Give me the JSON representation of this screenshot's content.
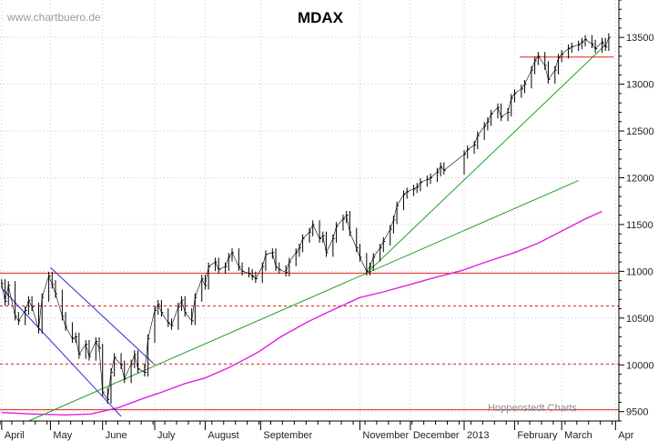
{
  "watermark": "www.chartbuero.de",
  "credit": "Hoppenstedt Charts",
  "chart_data": {
    "type": "line",
    "title": "MDAX",
    "xlabel": "",
    "ylabel": "",
    "ylim": [
      9400,
      13900
    ],
    "xlim": [
      "2012-04-01",
      "2013-04-04"
    ],
    "y_axis_position": "right",
    "grid": "dotted",
    "y_ticks": [
      9500,
      10000,
      10500,
      11000,
      11500,
      12000,
      12500,
      13000,
      13500
    ],
    "x_ticks": [
      {
        "label": "April",
        "date": "2012-04-02"
      },
      {
        "label": "May",
        "date": "2012-05-01"
      },
      {
        "label": "June",
        "date": "2012-06-01"
      },
      {
        "label": "July",
        "date": "2012-07-02"
      },
      {
        "label": "August",
        "date": "2012-08-01"
      },
      {
        "label": "September",
        "date": "2012-09-03"
      },
      {
        "label": "November",
        "date": "2012-11-01"
      },
      {
        "label": "December",
        "date": "2012-12-01"
      },
      {
        "label": "2013",
        "date": "2013-01-02"
      },
      {
        "label": "February",
        "date": "2013-02-01"
      },
      {
        "label": "March",
        "date": "2013-03-01"
      },
      {
        "label": "Apr",
        "date": "2013-04-02"
      }
    ],
    "price": [
      [
        "2012-04-02",
        10870
      ],
      [
        "2012-04-04",
        10680
      ],
      [
        "2012-04-06",
        10850
      ],
      [
        "2012-04-10",
        10520
      ],
      [
        "2012-04-12",
        10470
      ],
      [
        "2012-04-16",
        10580
      ],
      [
        "2012-04-18",
        10690
      ],
      [
        "2012-04-20",
        10620
      ],
      [
        "2012-04-24",
        10380
      ],
      [
        "2012-04-26",
        10720
      ],
      [
        "2012-04-30",
        10950
      ],
      [
        "2012-05-02",
        10860
      ],
      [
        "2012-05-04",
        10760
      ],
      [
        "2012-05-08",
        10520
      ],
      [
        "2012-05-10",
        10410
      ],
      [
        "2012-05-14",
        10280
      ],
      [
        "2012-05-16",
        10300
      ],
      [
        "2012-05-18",
        10110
      ],
      [
        "2012-05-22",
        10220
      ],
      [
        "2012-05-24",
        10090
      ],
      [
        "2012-05-28",
        10250
      ],
      [
        "2012-05-30",
        10180
      ],
      [
        "2012-06-01",
        9710
      ],
      [
        "2012-06-04",
        9630
      ],
      [
        "2012-06-06",
        9920
      ],
      [
        "2012-06-08",
        10080
      ],
      [
        "2012-06-12",
        10000
      ],
      [
        "2012-06-14",
        9850
      ],
      [
        "2012-06-18",
        10010
      ],
      [
        "2012-06-20",
        10110
      ],
      [
        "2012-06-22",
        9960
      ],
      [
        "2012-06-26",
        9920
      ],
      [
        "2012-06-28",
        10280
      ],
      [
        "2012-07-02",
        10580
      ],
      [
        "2012-07-04",
        10650
      ],
      [
        "2012-07-06",
        10560
      ],
      [
        "2012-07-10",
        10450
      ],
      [
        "2012-07-12",
        10420
      ],
      [
        "2012-07-16",
        10620
      ],
      [
        "2012-07-18",
        10690
      ],
      [
        "2012-07-20",
        10560
      ],
      [
        "2012-07-24",
        10470
      ],
      [
        "2012-07-26",
        10720
      ],
      [
        "2012-07-30",
        10920
      ],
      [
        "2012-08-01",
        10850
      ],
      [
        "2012-08-03",
        11050
      ],
      [
        "2012-08-07",
        11100
      ],
      [
        "2012-08-09",
        11020
      ],
      [
        "2012-08-13",
        11050
      ],
      [
        "2012-08-15",
        11150
      ],
      [
        "2012-08-17",
        11200
      ],
      [
        "2012-08-21",
        11050
      ],
      [
        "2012-08-23",
        11000
      ],
      [
        "2012-08-27",
        10980
      ],
      [
        "2012-08-29",
        10950
      ],
      [
        "2012-08-31",
        10920
      ],
      [
        "2012-09-04",
        11050
      ],
      [
        "2012-09-06",
        11180
      ],
      [
        "2012-09-10",
        11200
      ],
      [
        "2012-09-12",
        11050
      ],
      [
        "2012-09-14",
        11020
      ],
      [
        "2012-09-18",
        10990
      ],
      [
        "2012-09-20",
        11100
      ],
      [
        "2012-09-24",
        11200
      ],
      [
        "2012-09-26",
        11250
      ],
      [
        "2012-09-28",
        11350
      ],
      [
        "2012-10-02",
        11420
      ],
      [
        "2012-10-04",
        11500
      ],
      [
        "2012-10-08",
        11350
      ],
      [
        "2012-10-10",
        11380
      ],
      [
        "2012-10-12",
        11200
      ],
      [
        "2012-10-16",
        11350
      ],
      [
        "2012-10-18",
        11480
      ],
      [
        "2012-10-22",
        11560
      ],
      [
        "2012-10-24",
        11600
      ],
      [
        "2012-10-26",
        11420
      ],
      [
        "2012-10-30",
        11250
      ],
      [
        "2012-11-01",
        11150
      ],
      [
        "2012-11-05",
        11000
      ],
      [
        "2012-11-07",
        11050
      ],
      [
        "2012-11-09",
        11150
      ],
      [
        "2012-11-13",
        11250
      ],
      [
        "2012-11-15",
        11320
      ],
      [
        "2012-11-19",
        11450
      ],
      [
        "2012-11-21",
        11550
      ],
      [
        "2012-11-23",
        11700
      ],
      [
        "2012-11-27",
        11820
      ],
      [
        "2012-11-29",
        11850
      ],
      [
        "2012-12-03",
        11880
      ],
      [
        "2012-12-05",
        11900
      ],
      [
        "2012-12-07",
        11950
      ],
      [
        "2012-12-11",
        11980
      ],
      [
        "2012-12-13",
        12000
      ],
      [
        "2012-12-17",
        12060
      ],
      [
        "2012-12-19",
        12120
      ],
      [
        "2012-12-21",
        12080
      ],
      [
        "2013-01-02",
        12250
      ],
      [
        "2013-01-04",
        12300
      ],
      [
        "2013-01-08",
        12350
      ],
      [
        "2013-01-10",
        12450
      ],
      [
        "2013-01-14",
        12550
      ],
      [
        "2013-01-16",
        12600
      ],
      [
        "2013-01-18",
        12680
      ],
      [
        "2013-01-22",
        12750
      ],
      [
        "2013-01-24",
        12650
      ],
      [
        "2013-01-28",
        12700
      ],
      [
        "2013-01-30",
        12850
      ],
      [
        "2013-02-01",
        12900
      ],
      [
        "2013-02-05",
        12950
      ],
      [
        "2013-02-07",
        13000
      ],
      [
        "2013-02-11",
        13150
      ],
      [
        "2013-02-13",
        13250
      ],
      [
        "2013-02-15",
        13300
      ],
      [
        "2013-02-19",
        13200
      ],
      [
        "2013-02-21",
        13050
      ],
      [
        "2013-02-25",
        13150
      ],
      [
        "2013-02-27",
        13280
      ],
      [
        "2013-03-01",
        13320
      ],
      [
        "2013-03-05",
        13380
      ],
      [
        "2013-03-07",
        13400
      ],
      [
        "2013-03-11",
        13420
      ],
      [
        "2013-03-13",
        13450
      ],
      [
        "2013-03-15",
        13480
      ],
      [
        "2013-03-19",
        13430
      ],
      [
        "2013-03-21",
        13380
      ],
      [
        "2013-03-25",
        13450
      ],
      [
        "2013-03-27",
        13400
      ],
      [
        "2013-03-29",
        13500
      ]
    ],
    "moving_average": [
      [
        "2012-04-02",
        9490
      ],
      [
        "2012-04-20",
        9475
      ],
      [
        "2012-05-10",
        9465
      ],
      [
        "2012-05-25",
        9475
      ],
      [
        "2012-06-10",
        9540
      ],
      [
        "2012-06-25",
        9640
      ],
      [
        "2012-07-05",
        9700
      ],
      [
        "2012-07-20",
        9800
      ],
      [
        "2012-08-01",
        9860
      ],
      [
        "2012-08-15",
        9970
      ],
      [
        "2012-09-01",
        10130
      ],
      [
        "2012-09-15",
        10300
      ],
      [
        "2012-10-01",
        10460
      ],
      [
        "2012-10-15",
        10580
      ],
      [
        "2012-11-01",
        10720
      ],
      [
        "2012-11-15",
        10780
      ],
      [
        "2012-12-01",
        10860
      ],
      [
        "2012-12-15",
        10930
      ],
      [
        "2013-01-01",
        11010
      ],
      [
        "2013-01-15",
        11100
      ],
      [
        "2013-02-01",
        11200
      ],
      [
        "2013-02-15",
        11300
      ],
      [
        "2013-03-01",
        11430
      ],
      [
        "2013-03-15",
        11560
      ],
      [
        "2013-03-25",
        11640
      ]
    ],
    "horizontal_lines": [
      {
        "y": 10980,
        "style": "solid",
        "color": "#e02020"
      },
      {
        "y": 10630,
        "style": "dashed",
        "color": "#e02020"
      },
      {
        "y": 10010,
        "style": "dashed",
        "color": "#e02020"
      },
      {
        "y": 9520,
        "style": "solid",
        "color": "#e02020"
      }
    ],
    "segments": [
      {
        "color": "#22a022",
        "from": [
          "2012-04-18",
          9400
        ],
        "to": [
          "2013-03-11",
          11970
        ]
      },
      {
        "color": "#22a022",
        "from": [
          "2012-11-05",
          10980
        ],
        "to": [
          "2013-03-27",
          13420
        ]
      },
      {
        "color": "#2a2adc",
        "from": [
          "2012-05-01",
          11040
        ],
        "to": [
          "2012-07-01",
          10020
        ]
      },
      {
        "color": "#2a2adc",
        "from": [
          "2012-04-02",
          10820
        ],
        "to": [
          "2012-06-12",
          9450
        ]
      },
      {
        "color": "#e02020",
        "from": [
          "2013-02-04",
          13290
        ],
        "to": [
          "2013-04-01",
          13290
        ]
      }
    ],
    "colors": {
      "price": "#000000",
      "moving_average": "#e020e0",
      "support": "#e02020",
      "trend": "#22a022",
      "channel": "#2a2adc",
      "grid": "#c8c8c8"
    }
  }
}
